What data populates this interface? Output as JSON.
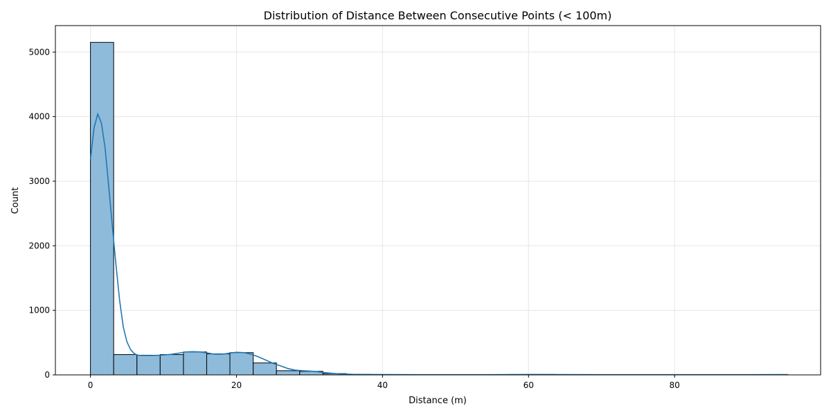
{
  "chart_data": {
    "type": "bar",
    "title": "Distribution of Distance Between Consecutive Points (< 100m)",
    "xlabel": "Distance (m)",
    "ylabel": "Count",
    "xlim": [
      -4.8,
      100.0
    ],
    "ylim": [
      0,
      5410
    ],
    "x_ticks": [
      0,
      20,
      40,
      60,
      80
    ],
    "y_ticks": [
      0,
      1000,
      2000,
      3000,
      4000,
      5000
    ],
    "grid": true,
    "bin_edges": [
      0,
      3.18,
      6.37,
      9.55,
      12.74,
      15.92,
      19.1,
      22.29,
      25.47,
      28.66,
      31.84,
      35.02,
      38.21,
      41.39,
      44.58,
      47.76,
      50.94,
      54.13,
      57.31,
      60.5,
      63.68,
      66.86,
      70.05,
      73.23,
      76.42,
      79.6,
      82.78,
      85.97,
      89.15,
      92.34,
      95.52
    ],
    "counts": [
      5150,
      315,
      305,
      315,
      355,
      325,
      345,
      185,
      65,
      55,
      20,
      8,
      6,
      4,
      3,
      3,
      3,
      4,
      6,
      7,
      5,
      4,
      4,
      3,
      3,
      3,
      4,
      3,
      3,
      5
    ],
    "kde": {
      "x": [
        0,
        0.5,
        1.0,
        1.5,
        2.0,
        2.5,
        3.0,
        3.5,
        4.0,
        4.5,
        5.0,
        5.5,
        6.0,
        6.5,
        7.0,
        8.0,
        9.0,
        10.0,
        11.0,
        12.0,
        13.0,
        14.0,
        15.0,
        16.0,
        17.0,
        18.0,
        19.0,
        20.0,
        21.0,
        22.0,
        23.0,
        24.0,
        25.0,
        26.0,
        27.0,
        28.0,
        29.0,
        30.0,
        31.0,
        32.0,
        34.0,
        36.0,
        40.0,
        45.0,
        50.0,
        55.0,
        60.0,
        65.0,
        70.0,
        75.0,
        80.0,
        85.0,
        90.0,
        95.5
      ],
      "y": [
        3340,
        3830,
        4040,
        3900,
        3520,
        2920,
        2300,
        1700,
        1150,
        740,
        510,
        390,
        330,
        305,
        300,
        300,
        302,
        308,
        318,
        335,
        355,
        360,
        355,
        340,
        320,
        320,
        335,
        350,
        345,
        320,
        280,
        230,
        180,
        140,
        100,
        75,
        65,
        60,
        50,
        35,
        15,
        8,
        5,
        3,
        3,
        4,
        6,
        5,
        3,
        3,
        3,
        3,
        3,
        5
      ]
    },
    "colors": {
      "bar_fill": "#8fbbda",
      "bar_edge": "#000000",
      "kde_line": "#1f77b4",
      "grid": "#e6e6e6"
    }
  }
}
